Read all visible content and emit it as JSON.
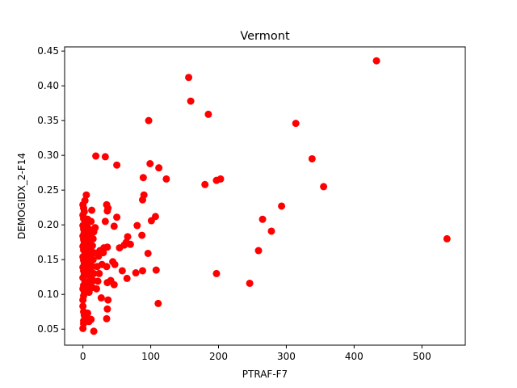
{
  "chart_data": {
    "type": "scatter",
    "title": "Vermont",
    "xlabel": "PTRAF-F7",
    "ylabel": "DEMOGIDX_2-F14",
    "xlim": [
      -27,
      564
    ],
    "ylim": [
      0.027,
      0.456
    ],
    "x_ticks": [
      0,
      100,
      200,
      300,
      400,
      500
    ],
    "y_ticks": [
      0.05,
      0.1,
      0.15,
      0.2,
      0.25,
      0.3,
      0.35,
      0.4,
      0.45
    ],
    "y_tick_labels": [
      "0.05",
      "0.10",
      "0.15",
      "0.20",
      "0.25",
      "0.30",
      "0.35",
      "0.40",
      "0.45"
    ],
    "marker_color": "#ff0000",
    "grid": false,
    "legend": "none",
    "series": [
      {
        "points": [
          [
            0,
            0.051
          ],
          [
            1,
            0.058
          ],
          [
            1,
            0.062
          ],
          [
            2,
            0.07
          ],
          [
            1,
            0.075
          ],
          [
            5,
            0.068
          ],
          [
            7,
            0.073
          ],
          [
            9,
            0.061
          ],
          [
            12,
            0.064
          ],
          [
            16,
            0.047
          ],
          [
            0,
            0.083
          ],
          [
            0,
            0.092
          ],
          [
            1,
            0.098
          ],
          [
            2,
            0.104
          ],
          [
            0,
            0.108
          ],
          [
            1,
            0.113
          ],
          [
            3,
            0.118
          ],
          [
            0,
            0.124
          ],
          [
            2,
            0.129
          ],
          [
            1,
            0.134
          ],
          [
            0,
            0.139
          ],
          [
            2,
            0.144
          ],
          [
            1,
            0.149
          ],
          [
            0,
            0.154
          ],
          [
            3,
            0.159
          ],
          [
            1,
            0.164
          ],
          [
            0,
            0.169
          ],
          [
            2,
            0.174
          ],
          [
            1,
            0.179
          ],
          [
            0,
            0.184
          ],
          [
            2,
            0.189
          ],
          [
            1,
            0.194
          ],
          [
            0,
            0.199
          ],
          [
            3,
            0.204
          ],
          [
            1,
            0.209
          ],
          [
            0,
            0.214
          ],
          [
            2,
            0.219
          ],
          [
            1,
            0.224
          ],
          [
            0,
            0.229
          ],
          [
            3,
            0.235
          ],
          [
            5,
            0.243
          ],
          [
            6,
            0.108
          ],
          [
            7,
            0.118
          ],
          [
            8,
            0.128
          ],
          [
            6,
            0.138
          ],
          [
            7,
            0.148
          ],
          [
            8,
            0.158
          ],
          [
            6,
            0.168
          ],
          [
            7,
            0.178
          ],
          [
            8,
            0.188
          ],
          [
            6,
            0.198
          ],
          [
            7,
            0.208
          ],
          [
            9,
            0.103
          ],
          [
            10,
            0.113
          ],
          [
            11,
            0.123
          ],
          [
            10,
            0.133
          ],
          [
            9,
            0.143
          ],
          [
            10,
            0.153
          ],
          [
            11,
            0.163
          ],
          [
            10,
            0.173
          ],
          [
            9,
            0.183
          ],
          [
            10,
            0.193
          ],
          [
            12,
            0.205
          ],
          [
            13,
            0.221
          ],
          [
            14,
            0.11
          ],
          [
            15,
            0.12
          ],
          [
            16,
            0.13
          ],
          [
            14,
            0.14
          ],
          [
            15,
            0.15
          ],
          [
            16,
            0.16
          ],
          [
            14,
            0.17
          ],
          [
            15,
            0.18
          ],
          [
            16,
            0.19
          ],
          [
            18,
            0.196
          ],
          [
            19,
            0.299
          ],
          [
            20,
            0.108
          ],
          [
            22,
            0.119
          ],
          [
            24,
            0.13
          ],
          [
            21,
            0.14
          ],
          [
            23,
            0.155
          ],
          [
            25,
            0.163
          ],
          [
            27,
            0.095
          ],
          [
            28,
            0.143
          ],
          [
            30,
            0.16
          ],
          [
            31,
            0.167
          ],
          [
            33,
            0.205
          ],
          [
            33,
            0.298
          ],
          [
            35,
            0.065
          ],
          [
            36,
            0.079
          ],
          [
            37,
            0.092
          ],
          [
            36,
            0.117
          ],
          [
            35,
            0.14
          ],
          [
            36,
            0.168
          ],
          [
            35,
            0.229
          ],
          [
            36,
            0.22
          ],
          [
            37,
            0.224
          ],
          [
            41,
            0.12
          ],
          [
            44,
            0.147
          ],
          [
            46,
            0.114
          ],
          [
            47,
            0.143
          ],
          [
            46,
            0.198
          ],
          [
            50,
            0.211
          ],
          [
            50,
            0.286
          ],
          [
            54,
            0.167
          ],
          [
            58,
            0.134
          ],
          [
            61,
            0.171
          ],
          [
            64,
            0.175
          ],
          [
            65,
            0.123
          ],
          [
            66,
            0.183
          ],
          [
            70,
            0.172
          ],
          [
            78,
            0.131
          ],
          [
            80,
            0.199
          ],
          [
            87,
            0.185
          ],
          [
            88,
            0.134
          ],
          [
            88,
            0.236
          ],
          [
            90,
            0.243
          ],
          [
            89,
            0.268
          ],
          [
            96,
            0.159
          ],
          [
            97,
            0.35
          ],
          [
            99,
            0.288
          ],
          [
            101,
            0.206
          ],
          [
            107,
            0.212
          ],
          [
            108,
            0.135
          ],
          [
            111,
            0.087
          ],
          [
            112,
            0.282
          ],
          [
            123,
            0.266
          ],
          [
            156,
            0.412
          ],
          [
            159,
            0.378
          ],
          [
            180,
            0.258
          ],
          [
            185,
            0.359
          ],
          [
            197,
            0.264
          ],
          [
            197,
            0.13
          ],
          [
            203,
            0.266
          ],
          [
            246,
            0.116
          ],
          [
            259,
            0.163
          ],
          [
            265,
            0.208
          ],
          [
            278,
            0.191
          ],
          [
            293,
            0.227
          ],
          [
            314,
            0.346
          ],
          [
            338,
            0.295
          ],
          [
            355,
            0.255
          ],
          [
            433,
            0.436
          ],
          [
            537,
            0.18
          ]
        ]
      }
    ]
  }
}
